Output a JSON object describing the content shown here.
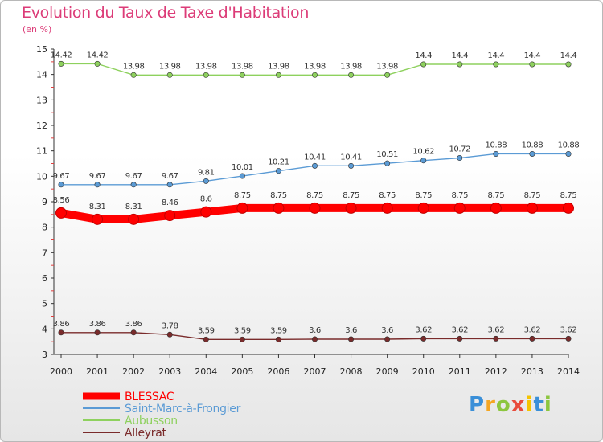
{
  "header": {
    "title": "Evolution du Taux de Taxe d'Habitation",
    "unit": "(en %)"
  },
  "logo": {
    "text": "Proxiti",
    "colors": [
      "#3a8fd8",
      "#f5a623",
      "#8cc63f",
      "#e84b3c",
      "#f5c400",
      "#3a8fd8",
      "#8cc63f"
    ]
  },
  "chart_data": {
    "type": "line",
    "title": "Evolution du Taux de Taxe d'Habitation",
    "ylabel": "(en %)",
    "xlabel": "",
    "x": [
      "2000",
      "2001",
      "2002",
      "2003",
      "2004",
      "2005",
      "2006",
      "2007",
      "2008",
      "2009",
      "2010",
      "2011",
      "2012",
      "2013",
      "2014"
    ],
    "ylim": [
      3,
      15
    ],
    "yticks": [
      "3",
      "4",
      "5",
      "6",
      "7",
      "8",
      "9",
      "10",
      "11",
      "12",
      "13",
      "14",
      "15"
    ],
    "grid": false,
    "legend_position": "bottom-left",
    "series": [
      {
        "name": "BLESSAC",
        "color": "#ff0000",
        "values": [
          8.56,
          8.31,
          8.31,
          8.46,
          8.6,
          8.75,
          8.75,
          8.75,
          8.75,
          8.75,
          8.75,
          8.75,
          8.75,
          8.75,
          8.75
        ],
        "labels": [
          "8.56",
          "8.31",
          "8.31",
          "8.46",
          "8.6",
          "8.75",
          "8.75",
          "8.75",
          "8.75",
          "8.75",
          "8.75",
          "8.75",
          "8.75",
          "8.75",
          "8.75"
        ]
      },
      {
        "name": "Saint-Marc-à-Frongier",
        "color": "#5b9bd5",
        "values": [
          9.67,
          9.67,
          9.67,
          9.67,
          9.81,
          10.01,
          10.21,
          10.41,
          10.41,
          10.51,
          10.62,
          10.72,
          10.88,
          10.88,
          10.88
        ],
        "labels": [
          "9.67",
          "9.67",
          "9.67",
          "9.67",
          "9.81",
          "10.01",
          "10.21",
          "10.41",
          "10.41",
          "10.51",
          "10.62",
          "10.72",
          "10.88",
          "10.88",
          "10.88"
        ]
      },
      {
        "name": "Aubusson",
        "color": "#8ed15e",
        "values": [
          14.42,
          14.42,
          13.98,
          13.98,
          13.98,
          13.98,
          13.98,
          13.98,
          13.98,
          13.98,
          14.4,
          14.4,
          14.4,
          14.4,
          14.4
        ],
        "labels": [
          "14.42",
          "14.42",
          "13.98",
          "13.98",
          "13.98",
          "13.98",
          "13.98",
          "13.98",
          "13.98",
          "13.98",
          "14.4",
          "14.4",
          "14.4",
          "14.4",
          "14.4"
        ]
      },
      {
        "name": "Alleyrat",
        "color": "#7a2b2b",
        "values": [
          3.86,
          3.86,
          3.86,
          3.78,
          3.59,
          3.59,
          3.59,
          3.6,
          3.6,
          3.6,
          3.62,
          3.62,
          3.62,
          3.62,
          3.62
        ],
        "labels": [
          "3.86",
          "3.86",
          "3.86",
          "3.78",
          "3.59",
          "3.59",
          "3.59",
          "3.6",
          "3.6",
          "3.6",
          "3.62",
          "3.62",
          "3.62",
          "3.62",
          "3.62"
        ]
      }
    ]
  }
}
